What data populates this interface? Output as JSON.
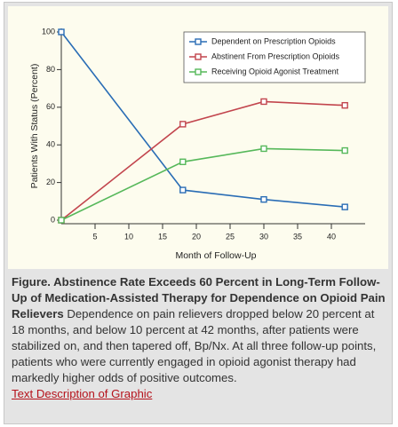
{
  "chart_data": {
    "type": "line",
    "y_label": "Patients With Status (Percent)",
    "x_label": "Month of Follow-Up",
    "x": [
      0,
      18,
      30,
      42
    ],
    "series": [
      {
        "name": "Dependent on Prescription Opioids",
        "color": "#2a6db5",
        "values": [
          100,
          16,
          11,
          7
        ]
      },
      {
        "name": "Abstinent From Prescription Opioids",
        "color": "#c2454d",
        "values": [
          0,
          51,
          63,
          61
        ]
      },
      {
        "name": "Receiving Opioid Agonist Treatment",
        "color": "#56b85a",
        "values": [
          0,
          31,
          38,
          37
        ]
      }
    ],
    "xlim": [
      0,
      45
    ],
    "ylim": [
      0,
      100
    ],
    "xticks": [
      5,
      10,
      15,
      20,
      25,
      30,
      35,
      40
    ],
    "yticks": [
      0,
      20,
      40,
      60,
      80,
      100
    ],
    "legend": "upper right"
  },
  "caption": {
    "title": "Figure. Abstinence Rate Exceeds 60 Percent in Long-Term Follow-Up of Medication-Assisted Therapy for Dependence on Opioid Pain Relievers",
    "body": "Dependence on pain relievers dropped below 20 percent at 18 months, and below 10 percent at 42 months, after patients were stabilized on, and then tapered off, Bp/Nx. At all three follow-up points, patients who were currently engaged in opioid agonist therapy had markedly higher odds of positive outcomes.",
    "link": "Text Description of Graphic"
  }
}
